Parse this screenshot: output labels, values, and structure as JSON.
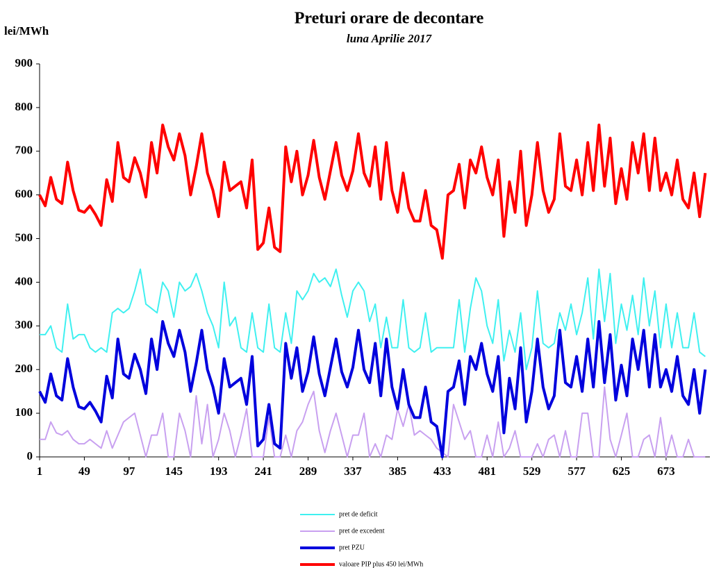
{
  "chart_data": {
    "type": "line",
    "title": "Preturi orare de decontare",
    "subtitle": "luna Aprilie 2017",
    "y_label": "lei/MWh",
    "xlim": [
      1,
      720
    ],
    "xticks": [
      1,
      49,
      97,
      145,
      193,
      241,
      289,
      337,
      385,
      433,
      481,
      529,
      577,
      625,
      673
    ],
    "ylim": [
      0,
      900
    ],
    "yticks": [
      0,
      100,
      200,
      300,
      400,
      500,
      600,
      700,
      800,
      900
    ],
    "grid": false,
    "legend": "bottom",
    "x": [
      1,
      7,
      13,
      19,
      25,
      31,
      37,
      43,
      49,
      55,
      61,
      67,
      73,
      79,
      85,
      91,
      97,
      103,
      109,
      115,
      121,
      127,
      133,
      139,
      145,
      151,
      157,
      163,
      169,
      175,
      181,
      187,
      193,
      199,
      205,
      211,
      217,
      223,
      229,
      235,
      241,
      247,
      253,
      259,
      265,
      271,
      277,
      283,
      289,
      295,
      301,
      307,
      313,
      319,
      325,
      331,
      337,
      343,
      349,
      355,
      361,
      367,
      373,
      379,
      385,
      391,
      397,
      403,
      409,
      415,
      421,
      427,
      433,
      439,
      445,
      451,
      457,
      463,
      469,
      475,
      481,
      487,
      493,
      499,
      505,
      511,
      517,
      523,
      529,
      535,
      541,
      547,
      553,
      559,
      565,
      571,
      577,
      583,
      589,
      595,
      601,
      607,
      613,
      619,
      625,
      631,
      637,
      643,
      649,
      655,
      661,
      667,
      673,
      679,
      685,
      691,
      697,
      703,
      709,
      715
    ],
    "series": [
      {
        "name": "pret de deficit",
        "color": "#3ff0f0",
        "values": [
          280,
          280,
          300,
          250,
          240,
          350,
          270,
          280,
          280,
          250,
          240,
          250,
          240,
          330,
          340,
          330,
          340,
          380,
          430,
          350,
          340,
          330,
          400,
          380,
          320,
          400,
          380,
          390,
          420,
          380,
          330,
          300,
          250,
          400,
          300,
          320,
          250,
          240,
          330,
          250,
          240,
          350,
          250,
          240,
          330,
          260,
          380,
          360,
          380,
          420,
          400,
          410,
          390,
          430,
          370,
          320,
          380,
          400,
          380,
          310,
          350,
          250,
          320,
          250,
          250,
          360,
          250,
          240,
          250,
          330,
          240,
          250,
          250,
          250,
          250,
          360,
          240,
          340,
          410,
          380,
          300,
          260,
          360,
          220,
          290,
          240,
          330,
          200,
          250,
          380,
          260,
          250,
          260,
          330,
          290,
          350,
          280,
          330,
          410,
          270,
          430,
          310,
          420,
          260,
          350,
          290,
          370,
          280,
          410,
          300,
          380,
          250,
          350,
          250,
          330,
          250,
          250,
          330,
          240,
          230
        ]
      },
      {
        "name": "pret de excedent",
        "color": "#c8a0f0",
        "values": [
          40,
          40,
          80,
          55,
          50,
          60,
          40,
          30,
          30,
          40,
          30,
          20,
          60,
          20,
          50,
          80,
          90,
          100,
          50,
          0,
          50,
          50,
          100,
          0,
          0,
          100,
          60,
          0,
          140,
          30,
          120,
          0,
          40,
          100,
          60,
          0,
          50,
          110,
          0,
          0,
          0,
          90,
          0,
          0,
          50,
          0,
          60,
          80,
          120,
          150,
          60,
          10,
          60,
          100,
          50,
          0,
          50,
          50,
          100,
          0,
          30,
          0,
          50,
          40,
          110,
          70,
          120,
          50,
          60,
          50,
          40,
          20,
          10,
          0,
          120,
          80,
          40,
          60,
          0,
          0,
          50,
          0,
          80,
          0,
          20,
          60,
          0,
          0,
          0,
          30,
          0,
          40,
          50,
          0,
          60,
          0,
          0,
          100,
          100,
          0,
          0,
          160,
          40,
          0,
          50,
          100,
          0,
          0,
          40,
          50,
          0,
          90,
          0,
          50,
          0,
          0,
          40,
          0,
          0,
          0
        ]
      },
      {
        "name": "pret PZU",
        "color": "#0000dd",
        "values": [
          150,
          125,
          190,
          140,
          130,
          225,
          160,
          115,
          110,
          125,
          105,
          80,
          185,
          135,
          270,
          190,
          180,
          235,
          200,
          145,
          270,
          200,
          310,
          260,
          230,
          290,
          240,
          150,
          215,
          290,
          200,
          160,
          100,
          225,
          160,
          170,
          180,
          120,
          230,
          25,
          40,
          120,
          30,
          20,
          260,
          180,
          250,
          150,
          195,
          275,
          190,
          140,
          205,
          270,
          195,
          160,
          205,
          290,
          200,
          170,
          260,
          140,
          270,
          160,
          110,
          200,
          120,
          90,
          90,
          160,
          80,
          70,
          0,
          150,
          160,
          220,
          120,
          230,
          200,
          260,
          190,
          150,
          230,
          55,
          180,
          110,
          250,
          80,
          150,
          270,
          160,
          110,
          140,
          290,
          170,
          160,
          230,
          150,
          270,
          160,
          310,
          170,
          280,
          130,
          210,
          140,
          270,
          200,
          290,
          160,
          280,
          160,
          200,
          150,
          230,
          140,
          120,
          200,
          100,
          200
        ]
      },
      {
        "name": "valoare PIP plus 450 lei/MWh",
        "color": "#ff0000",
        "values": [
          600,
          575,
          640,
          590,
          580,
          675,
          610,
          565,
          560,
          575,
          555,
          530,
          635,
          585,
          720,
          640,
          630,
          685,
          650,
          595,
          720,
          650,
          760,
          710,
          680,
          740,
          690,
          600,
          665,
          740,
          650,
          610,
          550,
          675,
          610,
          620,
          630,
          570,
          680,
          475,
          490,
          570,
          480,
          470,
          710,
          630,
          700,
          600,
          645,
          725,
          640,
          590,
          655,
          720,
          645,
          610,
          655,
          740,
          650,
          620,
          710,
          590,
          720,
          610,
          560,
          650,
          570,
          540,
          540,
          610,
          530,
          520,
          455,
          600,
          610,
          670,
          570,
          680,
          650,
          710,
          640,
          600,
          680,
          505,
          630,
          560,
          700,
          530,
          600,
          720,
          610,
          560,
          590,
          740,
          620,
          610,
          680,
          600,
          720,
          610,
          760,
          620,
          730,
          580,
          660,
          590,
          720,
          650,
          740,
          610,
          730,
          610,
          650,
          600,
          680,
          590,
          570,
          650,
          550,
          650
        ]
      }
    ]
  }
}
